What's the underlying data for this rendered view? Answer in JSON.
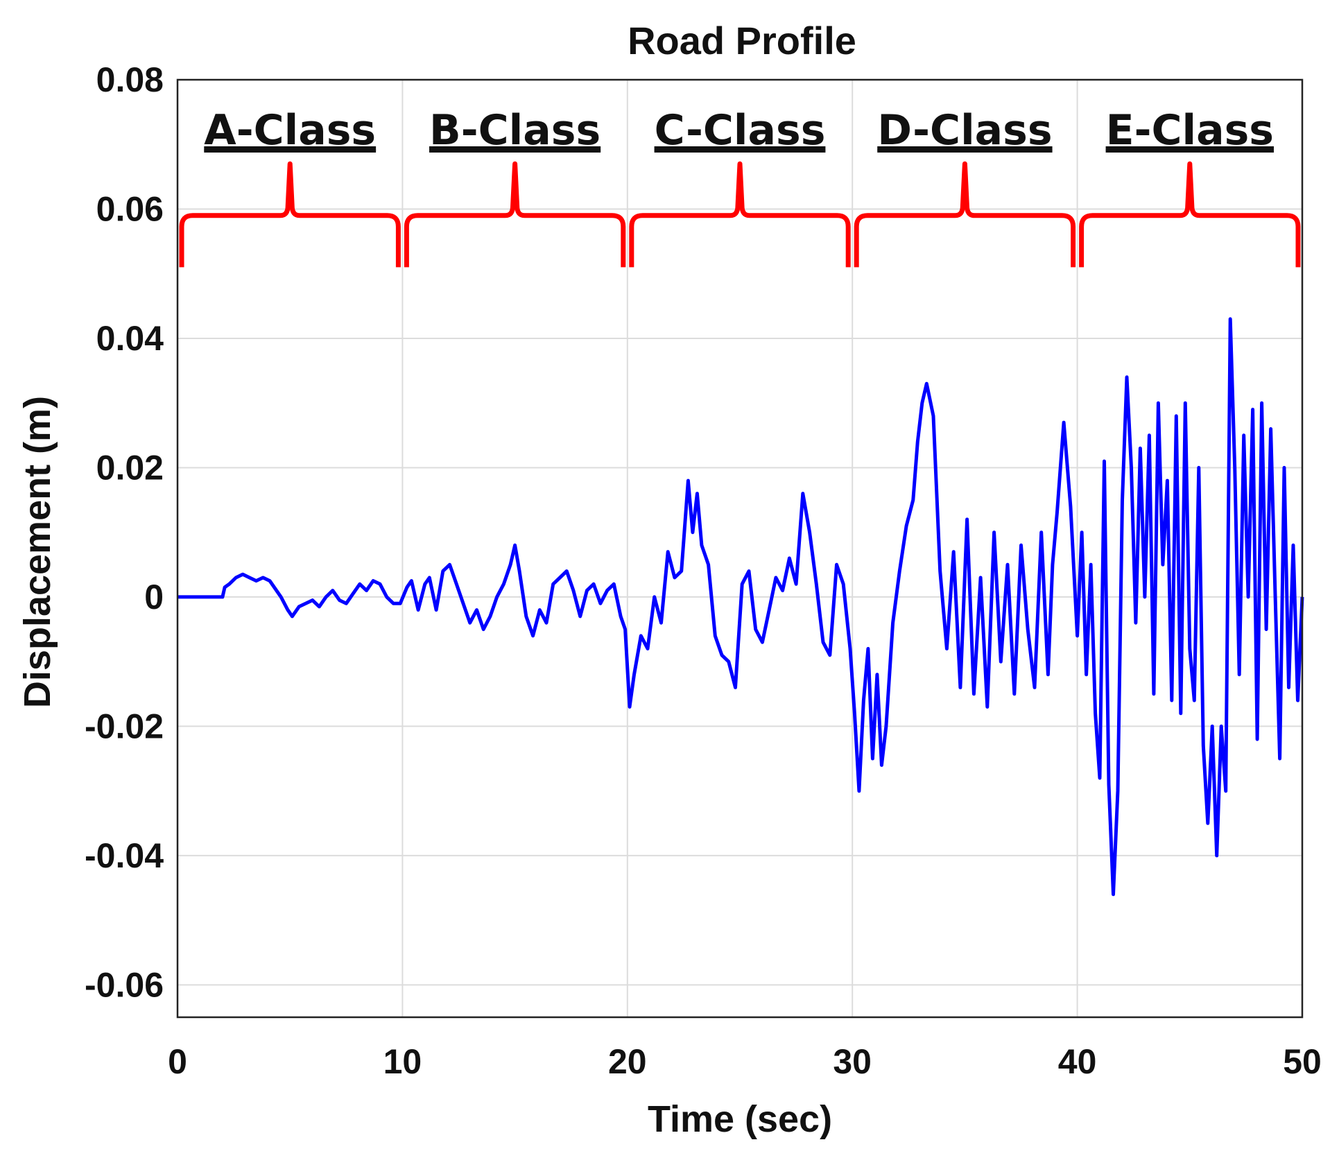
{
  "chart_data": {
    "type": "line",
    "title": "Road Profile",
    "xlabel": "Time (sec)",
    "ylabel": "Displacement (m)",
    "xlim": [
      0,
      50
    ],
    "ylim": [
      -0.065,
      0.08
    ],
    "x_ticks": [
      0,
      10,
      20,
      30,
      40,
      50
    ],
    "x_tick_labels": [
      "0",
      "10",
      "20",
      "30",
      "40",
      "50"
    ],
    "y_ticks": [
      -0.06,
      -0.04,
      -0.02,
      0,
      0.02,
      0.04,
      0.06,
      0.08
    ],
    "y_tick_labels": [
      "-0.06",
      "-0.04",
      "-0.02",
      "0",
      "0.02",
      "0.04",
      "0.06",
      "0.08"
    ],
    "grid": true,
    "line_color": "#0000ff",
    "bracket_color": "#ff0000",
    "segments": [
      {
        "label": "A-Class",
        "x_start": 0,
        "x_end": 10
      },
      {
        "label": "B-Class",
        "x_start": 10,
        "x_end": 20
      },
      {
        "label": "C-Class",
        "x_start": 20,
        "x_end": 30
      },
      {
        "label": "D-Class",
        "x_start": 30,
        "x_end": 40
      },
      {
        "label": "E-Class",
        "x_start": 40,
        "x_end": 50
      }
    ],
    "series": [
      {
        "x": [
          0,
          1,
          2,
          2.1,
          2.3,
          2.6,
          2.9,
          3.2,
          3.5,
          3.8,
          4.1,
          4.3,
          4.6,
          4.9,
          5.1,
          5.4,
          5.7,
          6.0,
          6.3,
          6.6,
          6.9,
          7.2,
          7.5,
          7.8,
          8.1,
          8.4,
          8.7,
          9.0,
          9.3,
          9.6,
          9.9,
          10.2,
          10.4,
          10.7,
          11.0,
          11.2,
          11.5,
          11.8,
          12.1,
          12.4,
          12.7,
          13.0,
          13.3,
          13.6,
          13.9,
          14.2,
          14.5,
          14.8,
          15.0,
          15.2,
          15.5,
          15.8,
          16.1,
          16.4,
          16.7,
          17.0,
          17.3,
          17.6,
          17.9,
          18.2,
          18.5,
          18.8,
          19.1,
          19.4,
          19.7,
          19.9,
          20.1,
          20.3,
          20.6,
          20.9,
          21.2,
          21.5,
          21.8,
          22.1,
          22.4,
          22.7,
          22.9,
          23.1,
          23.3,
          23.6,
          23.9,
          24.2,
          24.5,
          24.8,
          25.1,
          25.4,
          25.7,
          26.0,
          26.3,
          26.6,
          26.9,
          27.2,
          27.5,
          27.8,
          28.1,
          28.4,
          28.7,
          29.0,
          29.3,
          29.6,
          29.9,
          30.1,
          30.3,
          30.5,
          30.7,
          30.9,
          31.1,
          31.3,
          31.5,
          31.8,
          32.1,
          32.4,
          32.7,
          32.9,
          33.1,
          33.3,
          33.6,
          33.9,
          34.2,
          34.5,
          34.8,
          35.1,
          35.4,
          35.7,
          36.0,
          36.3,
          36.6,
          36.9,
          37.2,
          37.5,
          37.8,
          38.1,
          38.4,
          38.7,
          38.9,
          39.1,
          39.4,
          39.7,
          40.0,
          40.2,
          40.4,
          40.6,
          40.8,
          41.0,
          41.2,
          41.4,
          41.6,
          41.8,
          42.0,
          42.2,
          42.4,
          42.6,
          42.8,
          43.0,
          43.2,
          43.4,
          43.6,
          43.8,
          44.0,
          44.2,
          44.4,
          44.6,
          44.8,
          45.0,
          45.2,
          45.4,
          45.6,
          45.8,
          46.0,
          46.2,
          46.4,
          46.6,
          46.8,
          47.0,
          47.2,
          47.4,
          47.6,
          47.8,
          48.0,
          48.2,
          48.4,
          48.6,
          48.8,
          49.0,
          49.2,
          49.4,
          49.6,
          49.8,
          50.0
        ],
        "y": [
          0,
          0,
          0,
          0.0015,
          0.002,
          0.003,
          0.0035,
          0.003,
          0.0025,
          0.003,
          0.0025,
          0.0015,
          0.0,
          -0.002,
          -0.003,
          -0.0015,
          -0.001,
          -0.0005,
          -0.0015,
          0.0,
          0.001,
          -0.0005,
          -0.001,
          0.0005,
          0.002,
          0.001,
          0.0025,
          0.002,
          0.0,
          -0.001,
          -0.001,
          0.0015,
          0.0025,
          -0.002,
          0.002,
          0.003,
          -0.002,
          0.004,
          0.005,
          0.002,
          -0.001,
          -0.004,
          -0.002,
          -0.005,
          -0.003,
          0.0,
          0.002,
          0.005,
          0.008,
          0.004,
          -0.003,
          -0.006,
          -0.002,
          -0.004,
          0.002,
          0.003,
          0.004,
          0.001,
          -0.003,
          0.001,
          0.002,
          -0.001,
          0.001,
          0.002,
          -0.003,
          -0.005,
          -0.017,
          -0.012,
          -0.006,
          -0.008,
          0.0,
          -0.004,
          0.007,
          0.003,
          0.004,
          0.018,
          0.01,
          0.016,
          0.008,
          0.005,
          -0.006,
          -0.009,
          -0.01,
          -0.014,
          0.002,
          0.004,
          -0.005,
          -0.007,
          -0.002,
          0.003,
          0.001,
          0.006,
          0.002,
          0.016,
          0.01,
          0.002,
          -0.007,
          -0.009,
          0.005,
          0.002,
          -0.008,
          -0.018,
          -0.03,
          -0.016,
          -0.008,
          -0.025,
          -0.012,
          -0.026,
          -0.02,
          -0.004,
          0.004,
          0.011,
          0.015,
          0.024,
          0.03,
          0.033,
          0.028,
          0.004,
          -0.008,
          0.007,
          -0.014,
          0.012,
          -0.015,
          0.003,
          -0.017,
          0.01,
          -0.01,
          0.005,
          -0.015,
          0.008,
          -0.005,
          -0.014,
          0.01,
          -0.012,
          0.005,
          0.013,
          0.027,
          0.014,
          -0.006,
          0.01,
          -0.012,
          0.005,
          -0.018,
          -0.028,
          0.021,
          -0.029,
          -0.046,
          -0.03,
          0.015,
          0.034,
          0.02,
          -0.004,
          0.023,
          0.0,
          0.025,
          -0.015,
          0.03,
          0.005,
          0.018,
          -0.016,
          0.028,
          -0.018,
          0.03,
          -0.008,
          -0.016,
          0.02,
          -0.023,
          -0.035,
          -0.02,
          -0.04,
          -0.02,
          -0.03,
          0.043,
          0.02,
          -0.012,
          0.025,
          0.0,
          0.029,
          -0.022,
          0.03,
          -0.005,
          0.026,
          0.0,
          -0.025,
          0.02,
          -0.014,
          0.008,
          -0.016,
          0.0
        ]
      }
    ]
  }
}
